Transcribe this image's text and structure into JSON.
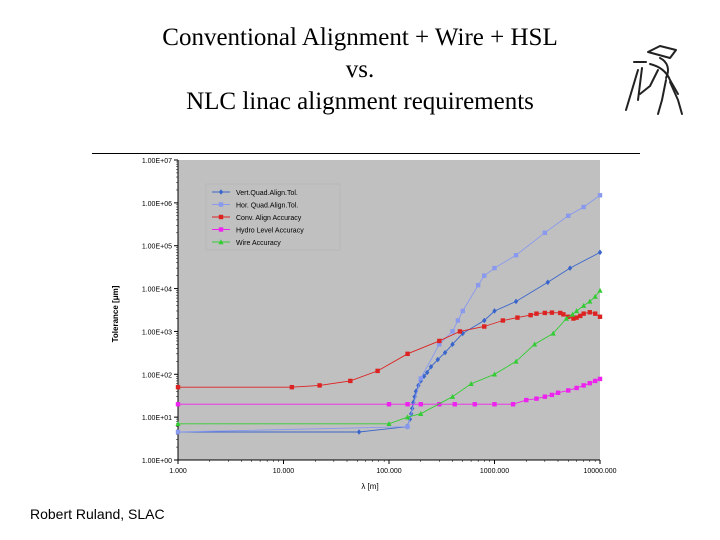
{
  "slide": {
    "title_lines": [
      "Conventional Alignment + Wire + HSL",
      "vs.",
      "NLC linac alignment requirements"
    ],
    "footer": "Robert Ruland, SLAC"
  },
  "chart_data": {
    "type": "scatter",
    "xscale": "log",
    "yscale": "log",
    "xlim": [
      1,
      10000
    ],
    "ylim": [
      1,
      10000000
    ],
    "xlabel": "λ [m]",
    "ylabel": "Tolerance [μm]",
    "xticks": [
      "1.000",
      "10.000",
      "100.000",
      "1000.000",
      "10000.000"
    ],
    "yticks": [
      "1.00E+00",
      "1.00E+01",
      "1.00E+02",
      "1.00E+03",
      "1.00E+04",
      "1.00E+05",
      "1.00E+06",
      "1.00E+07"
    ],
    "grid": false,
    "legend_position": "top-left",
    "plot_background": "#c0c0c0",
    "series": [
      {
        "name": "Vert.Quad.Align.Tol.",
        "color": "#3a66cc",
        "marker": "diamond",
        "points": [
          [
            1,
            4.5
          ],
          [
            52,
            4.5
          ],
          [
            148,
            6
          ],
          [
            158,
            9
          ],
          [
            162,
            12
          ],
          [
            166,
            16
          ],
          [
            170,
            22
          ],
          [
            175,
            30
          ],
          [
            180,
            40
          ],
          [
            190,
            55
          ],
          [
            200,
            70
          ],
          [
            215,
            90
          ],
          [
            230,
            110
          ],
          [
            250,
            150
          ],
          [
            290,
            220
          ],
          [
            340,
            320
          ],
          [
            400,
            500
          ],
          [
            500,
            900
          ],
          [
            800,
            1800
          ],
          [
            1000,
            3000
          ],
          [
            1600,
            5000
          ],
          [
            3200,
            14000
          ],
          [
            5200,
            30000
          ],
          [
            10000,
            70000
          ]
        ]
      },
      {
        "name": "Hor. Quad.Align.Tol.",
        "color": "#8899ee",
        "marker": "square",
        "points": [
          [
            1,
            4.5
          ],
          [
            150,
            6
          ],
          [
            200,
            80
          ],
          [
            300,
            500
          ],
          [
            400,
            1000
          ],
          [
            450,
            1800
          ],
          [
            500,
            3000
          ],
          [
            700,
            12000
          ],
          [
            800,
            20000
          ],
          [
            1000,
            30000
          ],
          [
            1600,
            60000
          ],
          [
            3000,
            200000
          ],
          [
            5000,
            500000
          ],
          [
            7000,
            800000
          ],
          [
            10000,
            1500000
          ]
        ]
      },
      {
        "name": "Conv. Align Accuracy",
        "color": "#dd2222",
        "marker": "square",
        "points": [
          [
            1,
            50
          ],
          [
            12,
            50
          ],
          [
            22,
            55
          ],
          [
            43,
            70
          ],
          [
            78,
            120
          ],
          [
            150,
            300
          ],
          [
            300,
            600
          ],
          [
            470,
            1000
          ],
          [
            800,
            1300
          ],
          [
            1200,
            1800
          ],
          [
            1650,
            2100
          ],
          [
            2200,
            2400
          ],
          [
            2500,
            2600
          ],
          [
            3000,
            2700
          ],
          [
            3500,
            2750
          ],
          [
            4200,
            2700
          ],
          [
            4500,
            2500
          ],
          [
            5000,
            2200
          ],
          [
            5600,
            2000
          ],
          [
            6000,
            2100
          ],
          [
            6500,
            2300
          ],
          [
            7000,
            2600
          ],
          [
            8000,
            2800
          ],
          [
            9000,
            2600
          ],
          [
            10000,
            2200
          ]
        ]
      },
      {
        "name": "Hydro Level Accuracy",
        "color": "#ee22ee",
        "marker": "square",
        "points": [
          [
            1,
            20
          ],
          [
            100,
            20
          ],
          [
            150,
            20
          ],
          [
            200,
            20
          ],
          [
            300,
            20
          ],
          [
            420,
            20
          ],
          [
            650,
            20
          ],
          [
            1000,
            20
          ],
          [
            1500,
            20
          ],
          [
            2000,
            25
          ],
          [
            2500,
            27
          ],
          [
            3000,
            30
          ],
          [
            3500,
            33
          ],
          [
            4000,
            37
          ],
          [
            5000,
            42
          ],
          [
            6000,
            48
          ],
          [
            7000,
            55
          ],
          [
            8000,
            62
          ],
          [
            9000,
            70
          ],
          [
            10000,
            78
          ]
        ]
      },
      {
        "name": "Wire Accuracy",
        "color": "#33cc33",
        "marker": "triangle",
        "points": [
          [
            1,
            7
          ],
          [
            100,
            7
          ],
          [
            150,
            10
          ],
          [
            200,
            12
          ],
          [
            400,
            30
          ],
          [
            600,
            60
          ],
          [
            1000,
            100
          ],
          [
            1600,
            200
          ],
          [
            2400,
            500
          ],
          [
            3600,
            900
          ],
          [
            4800,
            2000
          ],
          [
            5500,
            2500
          ],
          [
            6000,
            3000
          ],
          [
            7000,
            4000
          ],
          [
            8000,
            5000
          ],
          [
            9000,
            6500
          ],
          [
            10000,
            9000
          ]
        ]
      }
    ]
  }
}
